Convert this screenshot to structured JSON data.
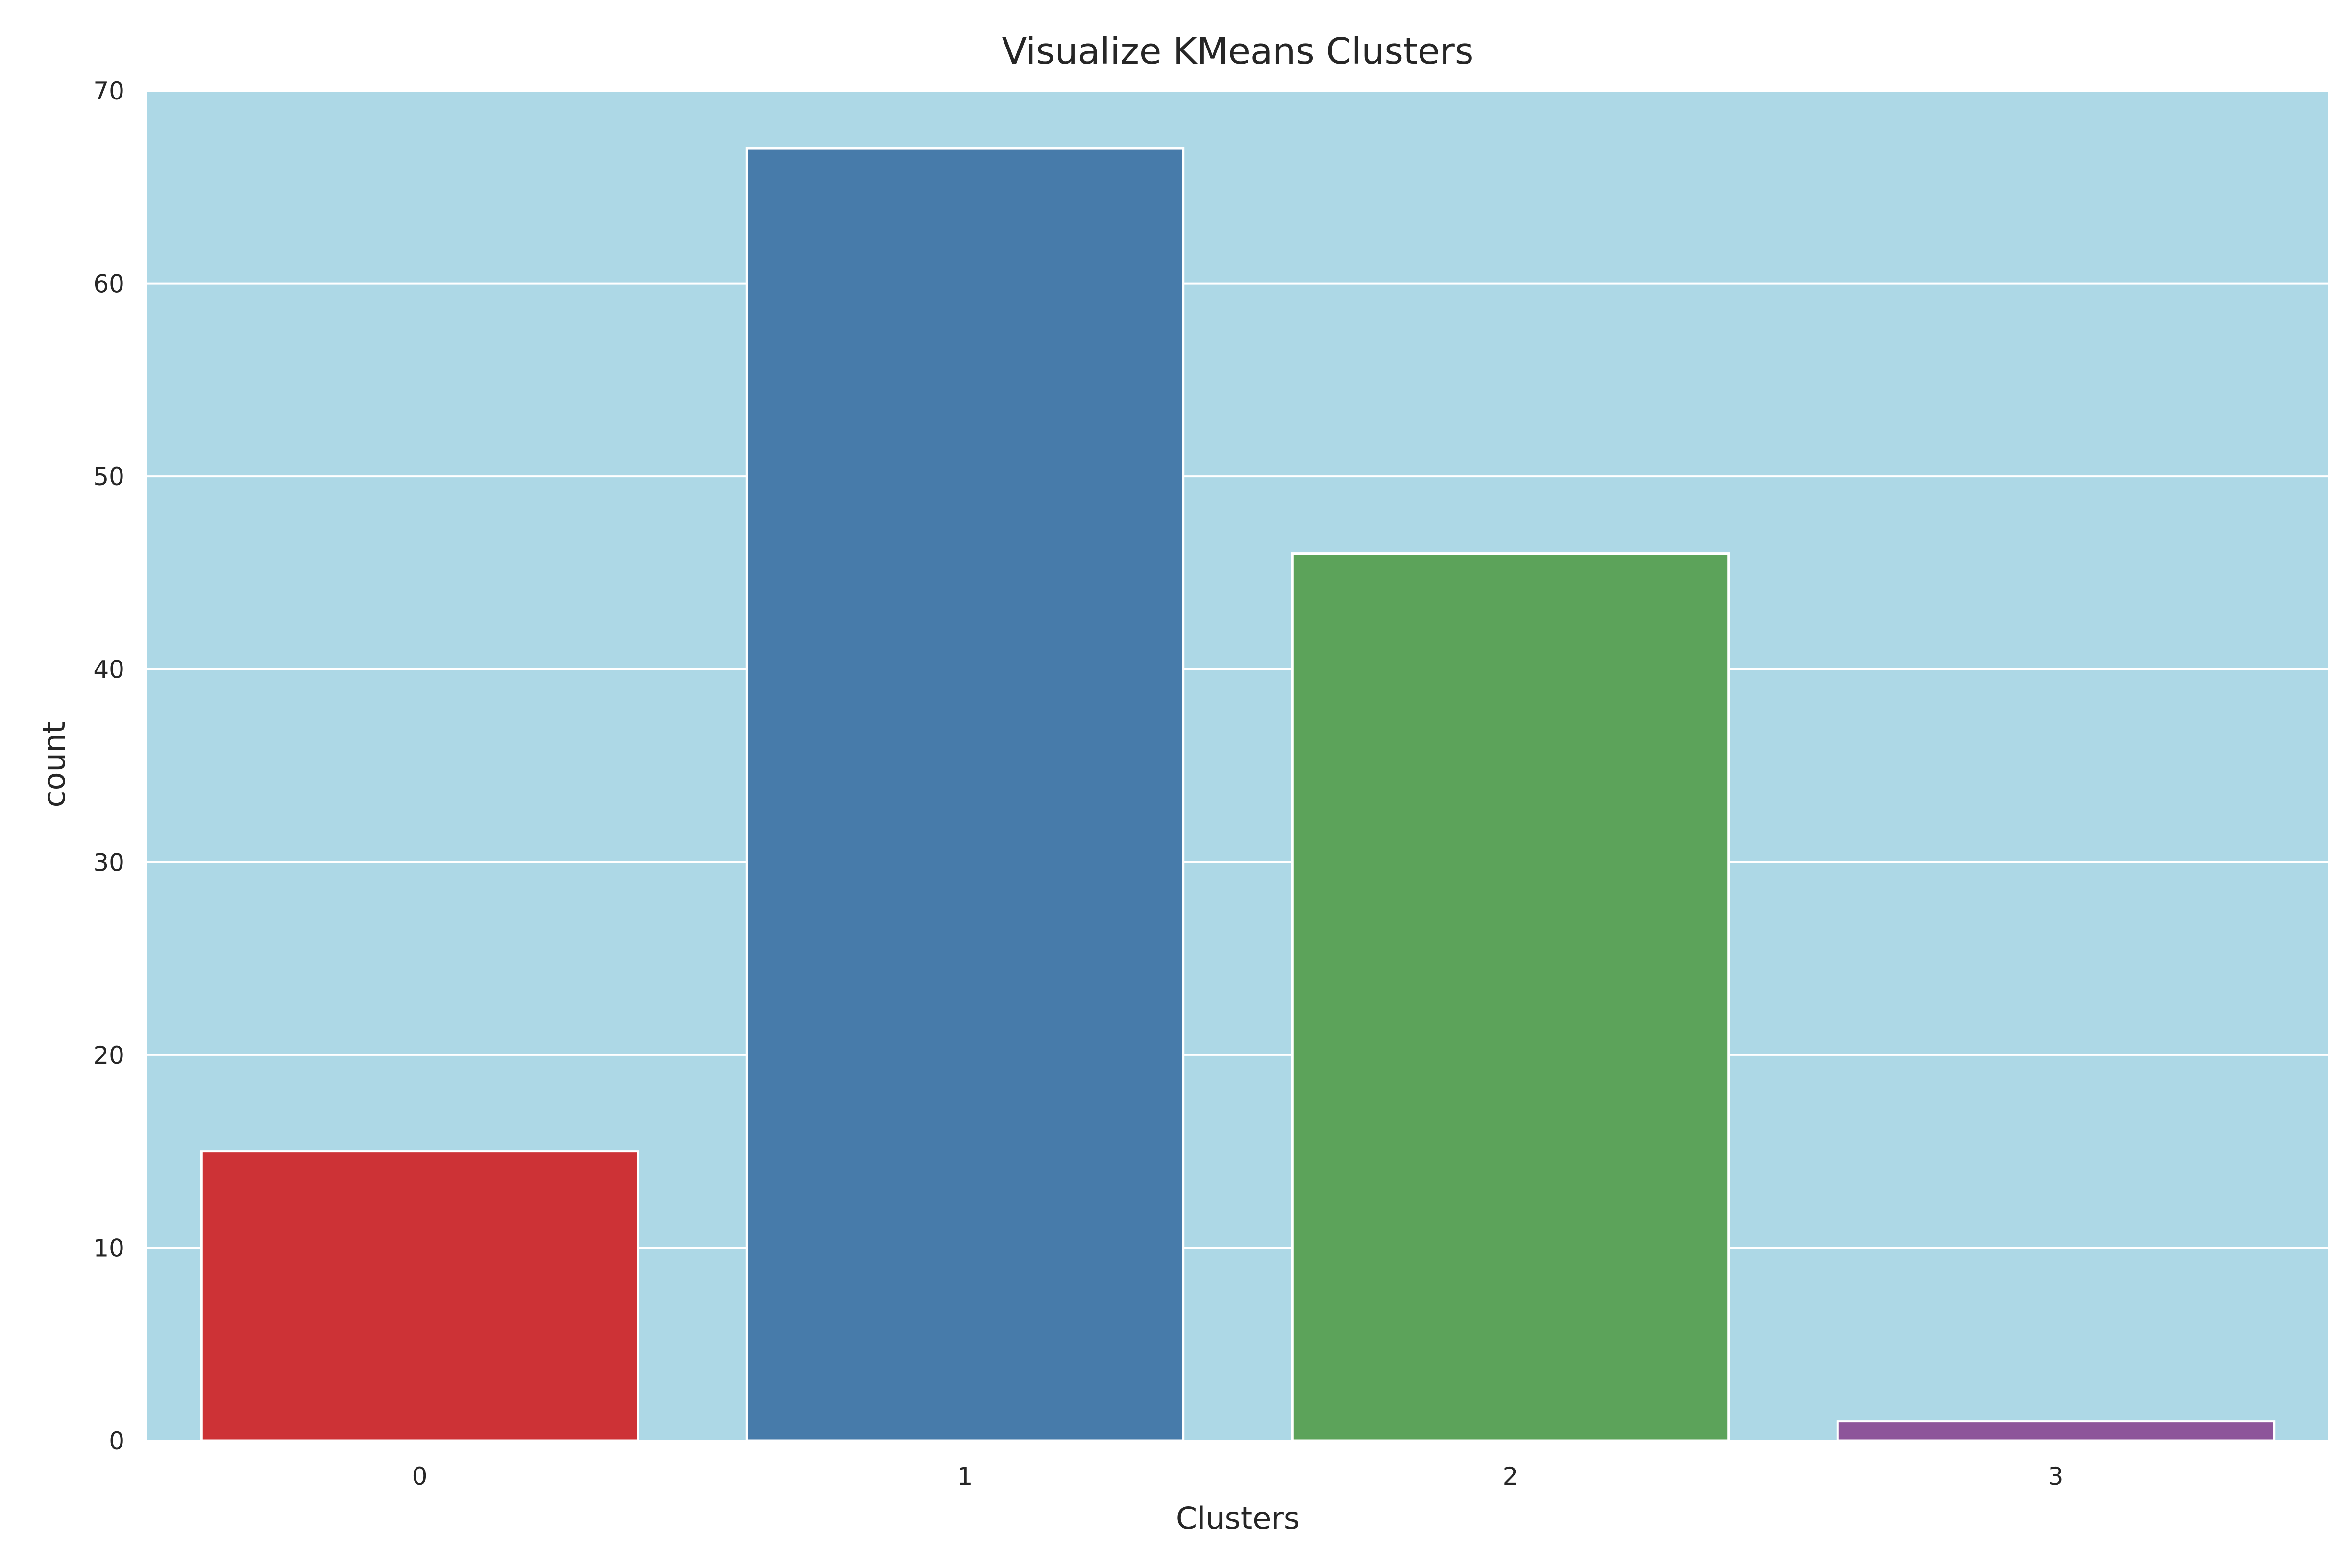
{
  "chart_data": {
    "type": "bar",
    "title": "Visualize KMeans Clusters",
    "xlabel": "Clusters",
    "ylabel": "count",
    "categories": [
      "0",
      "1",
      "2",
      "3"
    ],
    "values": [
      15,
      67,
      46,
      1
    ],
    "ylim": [
      0,
      70
    ],
    "yticks": [
      0,
      10,
      20,
      30,
      40,
      50,
      60,
      70
    ],
    "grid": true,
    "legend": "none",
    "colors": {
      "background": "#add8e6",
      "grid": "#ffffff",
      "bar_edge": "#ffffff",
      "bars": [
        "#cd3236",
        "#477baa",
        "#5ca35a",
        "#8d559a"
      ]
    }
  }
}
